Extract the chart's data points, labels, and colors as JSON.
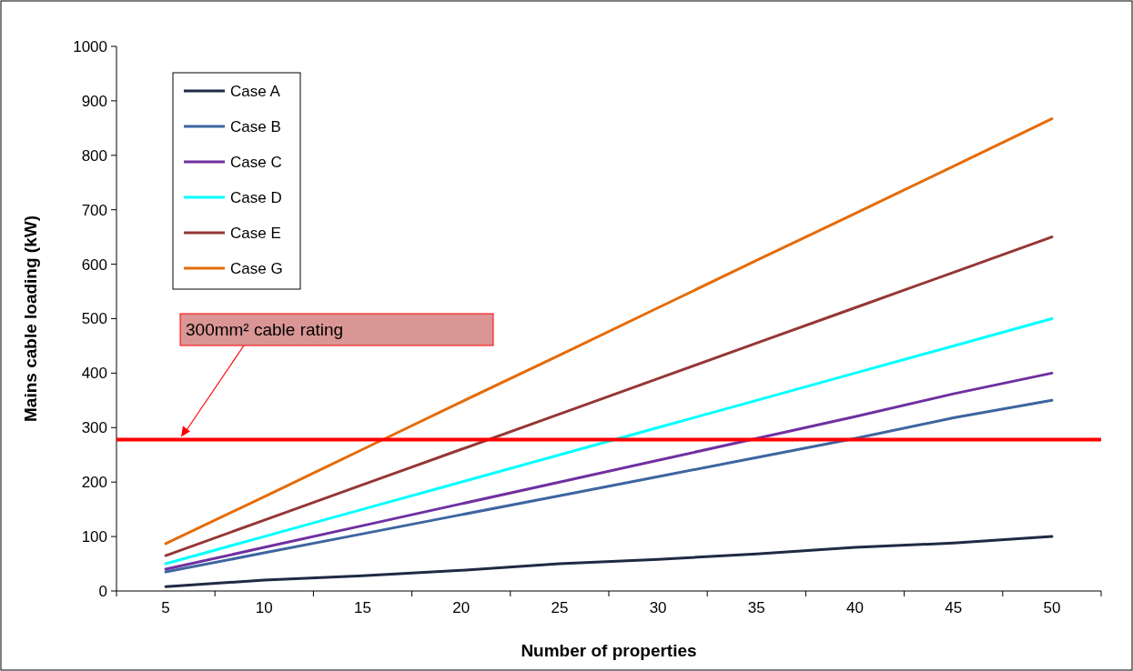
{
  "chart_data": {
    "type": "line",
    "xlabel": "Number of properties",
    "ylabel": "Mains cable loading (kW)",
    "categories": [
      "5",
      "10",
      "15",
      "20",
      "25",
      "30",
      "35",
      "40",
      "45",
      "50"
    ],
    "ylim": [
      0,
      1000
    ],
    "yticks": [
      0,
      100,
      200,
      300,
      400,
      500,
      600,
      700,
      800,
      900,
      1000
    ],
    "series": [
      {
        "name": "Case A",
        "color": "#1f2a44",
        "values": [
          8,
          20,
          28,
          38,
          50,
          58,
          68,
          80,
          88,
          100
        ]
      },
      {
        "name": "Case B",
        "color": "#3d65a0",
        "values": [
          35,
          70,
          105,
          140,
          175,
          210,
          245,
          280,
          318,
          350
        ]
      },
      {
        "name": "Case C",
        "color": "#7030a0",
        "values": [
          40,
          80,
          120,
          160,
          200,
          240,
          280,
          320,
          362,
          400
        ]
      },
      {
        "name": "Case D",
        "color": "#00ffff",
        "values": [
          50,
          100,
          150,
          200,
          250,
          300,
          350,
          400,
          450,
          500
        ]
      },
      {
        "name": "Case E",
        "color": "#953735",
        "values": [
          65,
          130,
          195,
          260,
          325,
          390,
          455,
          520,
          585,
          650
        ]
      },
      {
        "name": "Case G",
        "color": "#e46c0a",
        "values": [
          87,
          173,
          260,
          347,
          433,
          520,
          607,
          693,
          780,
          867
        ]
      }
    ],
    "ref_lines": [
      {
        "axis": "y",
        "value": 278,
        "label": "300mm² cable rating",
        "color": "#ff0000"
      }
    ],
    "legend": "top left",
    "grid": false,
    "marker": "none",
    "line_style": "solid"
  }
}
